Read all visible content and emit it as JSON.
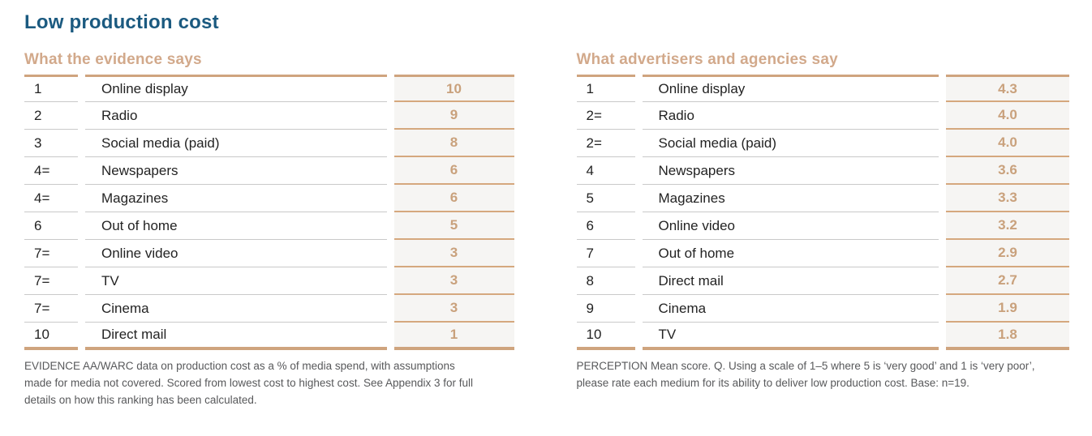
{
  "page": {
    "title": "Low production cost"
  },
  "colors": {
    "title_blue": "#1b5a80",
    "accent_tan": "#cfa47e",
    "tan_text": "#c9a17c",
    "score_cell_bg": "#f6f5f3",
    "row_divider_gray": "#c9c9c9",
    "body_text": "#232323",
    "footnote_gray": "#58595b"
  },
  "evidence": {
    "heading": "What the evidence says",
    "rows": [
      {
        "rank": "1",
        "medium": "Online display",
        "score": "10"
      },
      {
        "rank": "2",
        "medium": "Radio",
        "score": "9"
      },
      {
        "rank": "3",
        "medium": "Social media (paid)",
        "score": "8"
      },
      {
        "rank": "4=",
        "medium": "Newspapers",
        "score": "6"
      },
      {
        "rank": "4=",
        "medium": "Magazines",
        "score": "6"
      },
      {
        "rank": "6",
        "medium": "Out of home",
        "score": "5"
      },
      {
        "rank": "7=",
        "medium": "Online video",
        "score": "3"
      },
      {
        "rank": "7=",
        "medium": "TV",
        "score": "3"
      },
      {
        "rank": "7=",
        "medium": "Cinema",
        "score": "3"
      },
      {
        "rank": "10",
        "medium": "Direct mail",
        "score": "1"
      }
    ],
    "footnote": "EVIDENCE AA/WARC data on production cost as a % of media spend, with assumptions made for media not covered. Scored from lowest cost to highest cost. See Appendix 3 for full details on how this ranking has been calculated."
  },
  "perception": {
    "heading": "What advertisers and agencies say",
    "rows": [
      {
        "rank": "1",
        "medium": "Online display",
        "score": "4.3"
      },
      {
        "rank": "2=",
        "medium": "Radio",
        "score": "4.0"
      },
      {
        "rank": "2=",
        "medium": "Social media (paid)",
        "score": "4.0"
      },
      {
        "rank": "4",
        "medium": "Newspapers",
        "score": "3.6"
      },
      {
        "rank": "5",
        "medium": "Magazines",
        "score": "3.3"
      },
      {
        "rank": "6",
        "medium": "Online video",
        "score": "3.2"
      },
      {
        "rank": "7",
        "medium": "Out of home",
        "score": "2.9"
      },
      {
        "rank": "8",
        "medium": "Direct mail",
        "score": "2.7"
      },
      {
        "rank": "9",
        "medium": "Cinema",
        "score": "1.9"
      },
      {
        "rank": "10",
        "medium": "TV",
        "score": "1.8"
      }
    ],
    "footnote": "PERCEPTION Mean score. Q. Using a scale of 1–5 where 5 is ‘very good’ and 1 is ‘very poor’, please rate each medium for its ability to deliver low production cost. Base: n=19."
  },
  "chart_data": [
    {
      "type": "table",
      "title": "What the evidence says",
      "columns": [
        "rank",
        "medium",
        "score"
      ],
      "categories": [
        "Online display",
        "Radio",
        "Social media (paid)",
        "Newspapers",
        "Magazines",
        "Out of home",
        "Online video",
        "TV",
        "Cinema",
        "Direct mail"
      ],
      "ranks": [
        "1",
        "2",
        "3",
        "4=",
        "4=",
        "6",
        "7=",
        "7=",
        "7=",
        "10"
      ],
      "values": [
        10,
        9,
        8,
        6,
        6,
        5,
        3,
        3,
        3,
        1
      ]
    },
    {
      "type": "table",
      "title": "What advertisers and agencies say",
      "columns": [
        "rank",
        "medium",
        "score"
      ],
      "categories": [
        "Online display",
        "Radio",
        "Social media (paid)",
        "Newspapers",
        "Magazines",
        "Online video",
        "Out of home",
        "Direct mail",
        "Cinema",
        "TV"
      ],
      "ranks": [
        "1",
        "2=",
        "2=",
        "4",
        "5",
        "6",
        "7",
        "8",
        "9",
        "10"
      ],
      "values": [
        4.3,
        4.0,
        4.0,
        3.6,
        3.3,
        3.2,
        2.9,
        2.7,
        1.9,
        1.8
      ]
    }
  ]
}
